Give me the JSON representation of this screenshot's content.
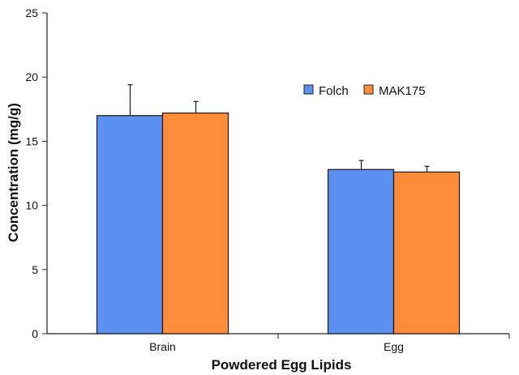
{
  "chart_data": {
    "type": "bar",
    "title": "",
    "xlabel": "Powdered Egg Lipids",
    "ylabel": "Concentration (mg/g)",
    "categories": [
      "Brain",
      "Egg"
    ],
    "series": [
      {
        "name": "Folch",
        "values": [
          17.0,
          12.8
        ],
        "errors": [
          2.4,
          0.7
        ],
        "color": "#5b8ff0"
      },
      {
        "name": "MAK175",
        "values": [
          17.2,
          12.6
        ],
        "errors": [
          0.9,
          0.45
        ],
        "color": "#ff8c3a"
      }
    ],
    "ylim": [
      0,
      25
    ],
    "yticks": [
      "0",
      "5",
      "10",
      "15",
      "20",
      "25"
    ],
    "grid": false,
    "legend_position": "top-right"
  }
}
